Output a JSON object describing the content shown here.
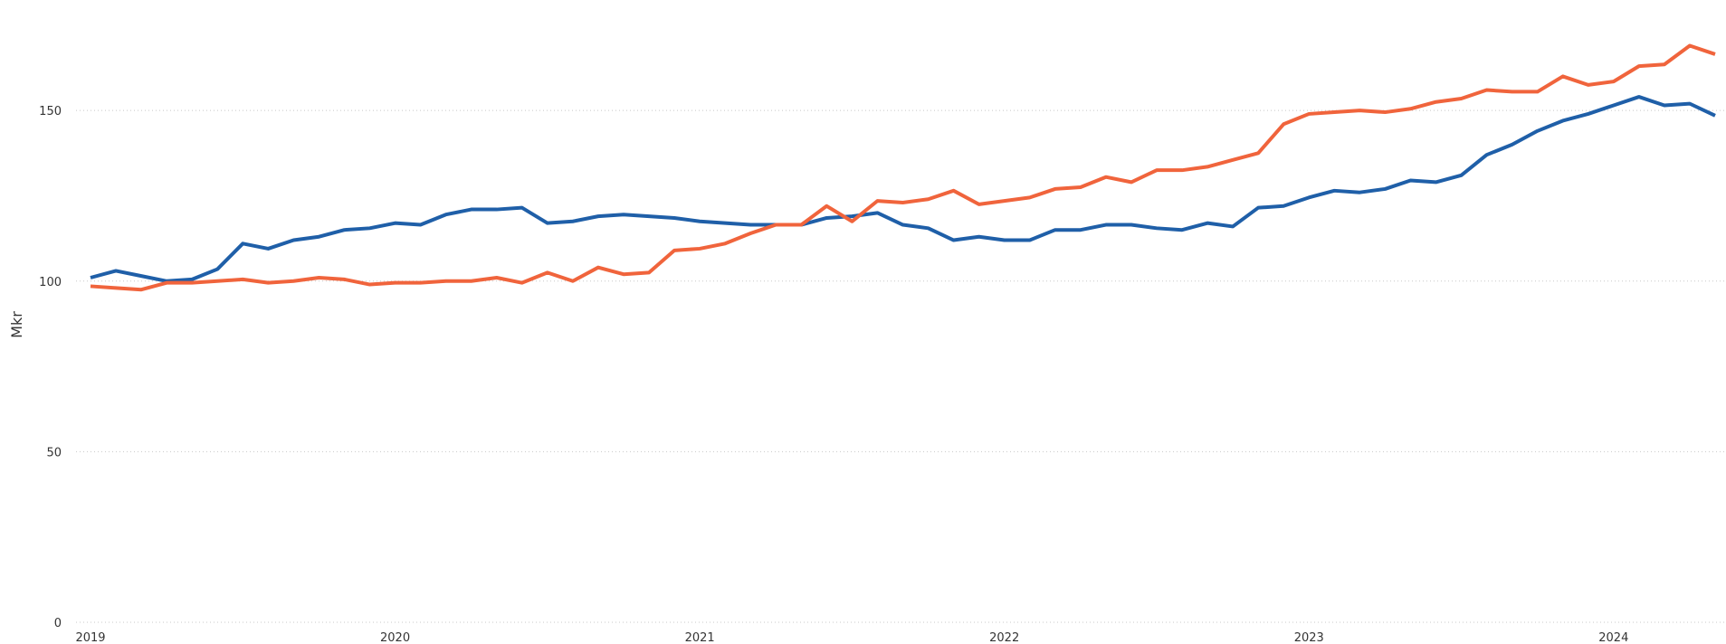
{
  "chart_data": {
    "type": "line",
    "y_label": "Mkr",
    "x": [
      "2019-01",
      "2019-02",
      "2019-03",
      "2019-04",
      "2019-05",
      "2019-06",
      "2019-07",
      "2019-08",
      "2019-09",
      "2019-10",
      "2019-11",
      "2019-12",
      "2020-01",
      "2020-02",
      "2020-03",
      "2020-04",
      "2020-05",
      "2020-06",
      "2020-07",
      "2020-08",
      "2020-09",
      "2020-10",
      "2020-11",
      "2020-12",
      "2021-01",
      "2021-02",
      "2021-03",
      "2021-04",
      "2021-05",
      "2021-06",
      "2021-07",
      "2021-08",
      "2021-09",
      "2021-10",
      "2021-11",
      "2021-12",
      "2022-01",
      "2022-02",
      "2022-03",
      "2022-04",
      "2022-05",
      "2022-06",
      "2022-07",
      "2022-08",
      "2022-09",
      "2022-10",
      "2022-11",
      "2022-12",
      "2023-01",
      "2023-02",
      "2023-03",
      "2023-04",
      "2023-05",
      "2023-06",
      "2023-07",
      "2023-08",
      "2023-09",
      "2023-10",
      "2023-11",
      "2023-12",
      "2024-01",
      "2024-02",
      "2024-03",
      "2024-04",
      "2024-05"
    ],
    "series": [
      {
        "color": "#1f5fa8",
        "values": [
          101,
          103,
          101.5,
          100,
          100.5,
          103.5,
          111,
          109.5,
          112,
          113,
          115,
          115.5,
          117,
          116.5,
          119.5,
          121,
          121,
          121.5,
          117,
          117.5,
          119,
          119.5,
          119,
          118.5,
          117.5,
          117,
          116.5,
          116.5,
          116.5,
          118.5,
          119,
          120,
          116.5,
          115.5,
          112,
          113,
          112,
          112,
          115,
          115,
          116.5,
          116.5,
          115.5,
          115,
          117,
          116,
          121.5,
          122,
          124.5,
          126.5,
          126,
          127,
          129.5,
          129,
          131,
          137,
          140,
          144,
          147,
          149,
          151.5,
          154,
          151.5,
          152,
          148.5
        ]
      },
      {
        "color": "#f0643c",
        "values": [
          98.5,
          98,
          97.5,
          99.5,
          99.5,
          100,
          100.5,
          99.5,
          100,
          101,
          100.5,
          99,
          99.5,
          99.5,
          100,
          100,
          101,
          99.5,
          102.5,
          100,
          104,
          102,
          102.5,
          109,
          109.5,
          111,
          114,
          116.5,
          116.5,
          122,
          117.5,
          123.5,
          123,
          124,
          126.5,
          122.5,
          123.5,
          124.5,
          127,
          127.5,
          130.5,
          129,
          132.5,
          132.5,
          133.5,
          135.5,
          137.5,
          146,
          149,
          149.5,
          150,
          149.5,
          150.5,
          152.5,
          153.5,
          156,
          155.5,
          155.5,
          160,
          157.5,
          158.5,
          163,
          163.5,
          169,
          166.5
        ]
      }
    ],
    "xlim": [
      "2019-01",
      "2024-05"
    ],
    "xticks": [
      2019,
      2020,
      2021,
      2022,
      2023,
      2024
    ],
    "ylim": [
      0,
      180
    ],
    "yticks": [
      0,
      50,
      100,
      150
    ],
    "grid": true
  }
}
